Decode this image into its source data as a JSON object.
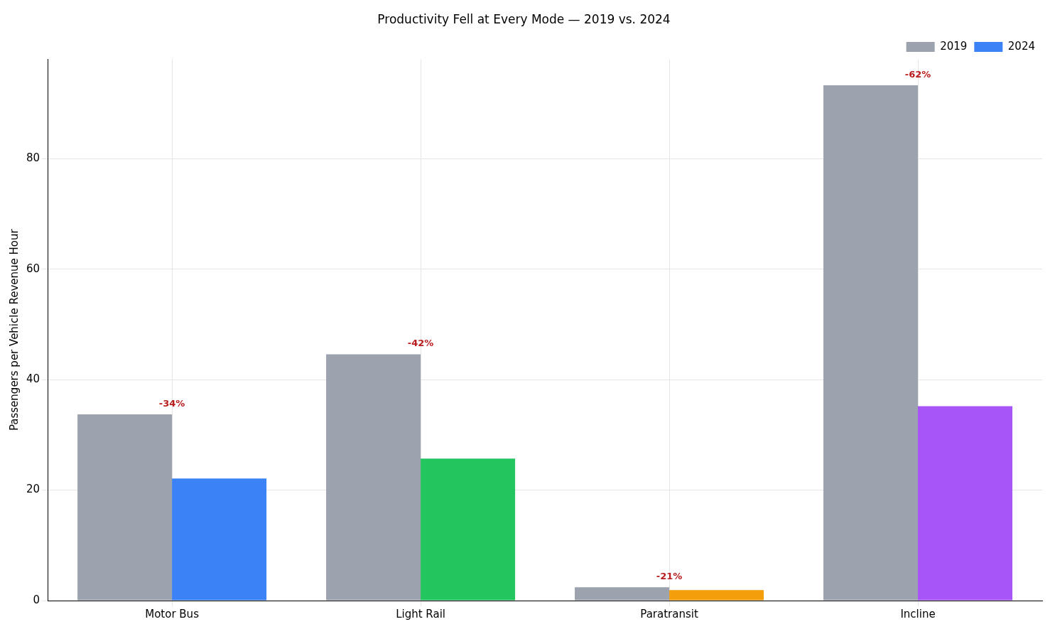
{
  "chart_data": {
    "type": "bar",
    "title": "Productivity Fell at Every Mode — 2019 vs. 2024",
    "ylabel": "Passengers per Vehicle Revenue Hour",
    "categories": [
      "Motor Bus",
      "Light Rail",
      "Paratransit",
      "Incline"
    ],
    "series": [
      {
        "name": "2019",
        "color": "#9ca3af",
        "values": [
          33.7,
          44.6,
          2.4,
          93.3
        ]
      },
      {
        "name": "2024",
        "colors": [
          "#3b82f6",
          "#22c55e",
          "#f59e0b",
          "#a855f7"
        ],
        "values": [
          22.1,
          25.7,
          1.9,
          35.2
        ]
      }
    ],
    "annotations": [
      {
        "text": "-34%",
        "x": "Motor Bus",
        "y": 33.7
      },
      {
        "text": "-42%",
        "x": "Light Rail",
        "y": 44.6
      },
      {
        "text": "-21%",
        "x": "Paratransit",
        "y": 2.4
      },
      {
        "text": "-62%",
        "x": "Incline",
        "y": 93.3
      }
    ],
    "ylim": [
      0,
      98
    ],
    "yticks": [
      0,
      20,
      40,
      60,
      80
    ],
    "grid": true,
    "legend": "top right"
  }
}
